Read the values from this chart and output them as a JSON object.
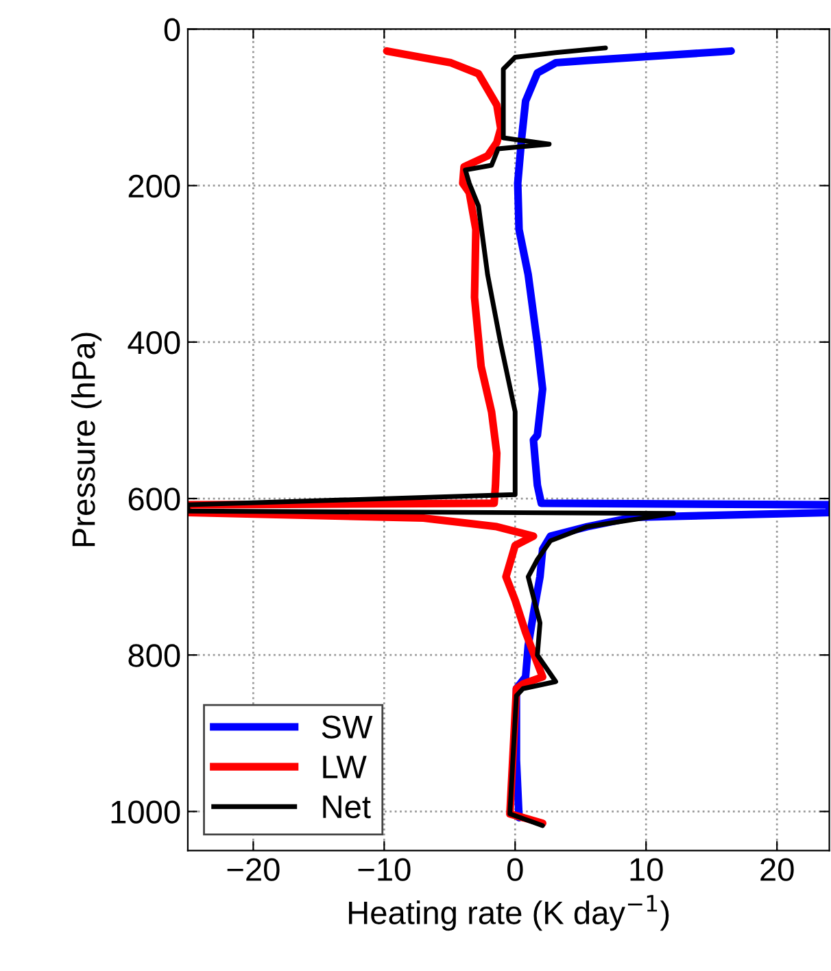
{
  "chart_data": {
    "type": "line",
    "xlabel": "Heating rate (K day$^{−1}$)",
    "ylabel": "Pressure (hPa)",
    "xlim": [
      -25,
      24
    ],
    "xticks": [
      {
        "value": -20,
        "label": "−20"
      },
      {
        "value": -10,
        "label": "−10"
      },
      0,
      10,
      20
    ],
    "ylim": [
      1050,
      0
    ],
    "yticks": [
      0,
      200,
      400,
      600,
      800,
      1000
    ],
    "grid": true,
    "legend": "bottom left",
    "line_style": "solid",
    "marker": "none",
    "series": [
      {
        "name": "SW",
        "color": "#0000ff",
        "x": [
          16.5,
          5.5,
          3.1,
          1.7,
          0.8,
          0.5,
          0.2,
          0.3,
          1.0,
          1.7,
          2.1,
          1.7,
          1.4,
          1.7,
          2.0,
          24,
          24,
          9,
          5.5,
          2.7,
          2.1,
          1.9,
          1.4,
          1.0,
          0.8,
          0.1,
          0.1,
          0.3
        ],
        "values": [
          28,
          40,
          43,
          56,
          92,
          139,
          197,
          256,
          314,
          402,
          460,
          519,
          525,
          583,
          606,
          608,
          618,
          624,
          636,
          648,
          665,
          700,
          747,
          788,
          828,
          843,
          934,
          1008
        ]
      },
      {
        "name": "LW",
        "color": "#ff0000",
        "x": [
          -9.8,
          -4.9,
          -2.8,
          -1.4,
          -1.1,
          -1.4,
          -2.1,
          -3.9,
          -4.0,
          -3.5,
          -3.0,
          -3.1,
          -2.6,
          -1.8,
          -1.4,
          -1.5,
          -1.6,
          -25,
          -25,
          -7,
          -1.4,
          1.4,
          0,
          -0.7,
          0,
          0.8,
          2.1,
          0.6,
          0.1,
          -0.4,
          2.1
        ],
        "values": [
          28,
          43,
          57,
          97,
          127,
          145,
          162,
          176,
          197,
          209,
          256,
          343,
          431,
          489,
          542,
          583,
          606,
          608,
          618,
          625,
          636,
          648,
          660,
          700,
          730,
          771,
          828,
          837,
          843,
          1003,
          1015
        ]
      },
      {
        "name": "Net",
        "color": "#000000",
        "x": [
          6.9,
          3.1,
          0,
          -0.9,
          -0.9,
          2.6,
          -1.3,
          -1.8,
          -3.8,
          -3.5,
          -2.8,
          -2.1,
          -1.1,
          0,
          0,
          0,
          -25,
          -25,
          12.1,
          5.5,
          2.7,
          1.7,
          1.0,
          1.9,
          1.7,
          3.1,
          0.6,
          0.1,
          -0.4,
          2.1
        ],
        "values": [
          24,
          30,
          36,
          51,
          139,
          147,
          153,
          174,
          180,
          197,
          226,
          314,
          402,
          489,
          542,
          595,
          608,
          616,
          619,
          636,
          654,
          678,
          700,
          759,
          800,
          834,
          843,
          852,
          1003,
          1018
        ]
      }
    ]
  }
}
